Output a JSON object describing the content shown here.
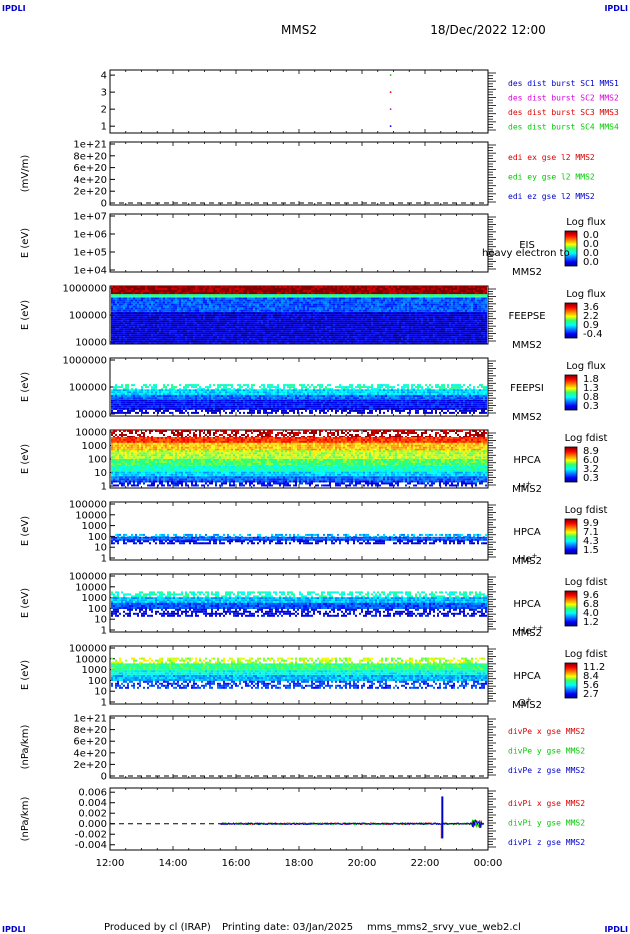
{
  "header": {
    "corner_label": "IPDLI",
    "spacecraft": "MMS2",
    "datetime": "18/Dec/2022 12:00"
  },
  "footer": {
    "credit": "Produced by cl (IRAP)",
    "print_date": "Printing date: 03/Jan/2025",
    "filename": "mms_mms2_srvy_vue_web2.cl"
  },
  "colors": {
    "mms1": "#0000cc",
    "mms2": "#dd00dd",
    "mms3": "#dd0000",
    "mms4": "#00cc00",
    "x_component": "#dd0000",
    "y_component": "#00cc00",
    "z_component": "#0000cc"
  },
  "chart_data": {
    "type": "multi-panel time series",
    "x_axis": {
      "ticks": [
        "12:00",
        "14:00",
        "16:00",
        "18:00",
        "20:00",
        "22:00",
        "00:00"
      ],
      "range_hours": [
        12,
        24
      ]
    },
    "panels": [
      {
        "id": "burst",
        "type": "scatter",
        "ytick_labels": [
          "1",
          "2",
          "3",
          "4"
        ],
        "ylim": [
          0.6,
          4.3
        ],
        "legend": [
          {
            "text": "des dist burst SC1 MMS1",
            "color": "#0000cc"
          },
          {
            "text": "des dist burst SC2 MMS2",
            "color": "#dd00dd"
          },
          {
            "text": "des dist burst SC3 MMS3",
            "color": "#dd0000"
          },
          {
            "text": "des dist burst SC4 MMS4",
            "color": "#00cc00"
          }
        ],
        "points": [
          {
            "x": 20.9,
            "y": 1,
            "color": "#0000cc"
          },
          {
            "x": 20.9,
            "y": 2,
            "color": "#dd00dd"
          },
          {
            "x": 20.9,
            "y": 3,
            "color": "#dd0000"
          },
          {
            "x": 20.9,
            "y": 4,
            "color": "#00cc00"
          }
        ]
      },
      {
        "id": "edi",
        "type": "line",
        "ylabel": "(mV/m)",
        "ytick_labels": [
          "0",
          "2e+20",
          "4e+20",
          "6e+20",
          "8e+20",
          "1e+21"
        ],
        "zero_line": true,
        "legend": [
          {
            "text": "edi ex gse l2 MMS2",
            "color": "#dd0000"
          },
          {
            "text": "edi ey gse l2 MMS2",
            "color": "#00cc00"
          },
          {
            "text": "edi ez gse l2 MMS2",
            "color": "#0000cc"
          }
        ]
      },
      {
        "id": "eis",
        "type": "heatmap",
        "ylabel": "E (eV)",
        "ytick_labels": [
          "1e+04",
          "1e+05",
          "1e+06",
          "1e+07"
        ],
        "scale": "log",
        "instrument": "EIS",
        "overlay_text": "heavy electron to",
        "spacecraft": "MMS2",
        "colorbar": {
          "title": "Log flux",
          "ticks": [
            "0.0",
            "0.0",
            "0.0",
            "0.0"
          ]
        },
        "data_bands": []
      },
      {
        "id": "feepse",
        "type": "heatmap",
        "ylabel": "E (eV)",
        "ytick_labels": [
          "10000",
          "100000",
          "1000000"
        ],
        "instrument": "FEEPSE",
        "spacecraft": "MMS2",
        "colorbar": {
          "title": "Log flux",
          "ticks": [
            "3.6",
            "2.2",
            "0.9",
            "-0.4"
          ]
        },
        "data_bands": [
          {
            "from": 0.0,
            "to": 0.14,
            "level": 0.98
          },
          {
            "from": 0.14,
            "to": 0.2,
            "level": 0.45
          },
          {
            "from": 0.2,
            "to": 0.45,
            "level": 0.2
          },
          {
            "from": 0.45,
            "to": 1.0,
            "level": 0.08
          }
        ]
      },
      {
        "id": "feepsi",
        "type": "heatmap",
        "ylabel": "E (eV)",
        "ytick_labels": [
          "10000",
          "100000",
          "1000000"
        ],
        "instrument": "FEEPSI",
        "spacecraft": "MMS2",
        "colorbar": {
          "title": "Log flux",
          "ticks": [
            "1.8",
            "1.3",
            "0.8",
            "0.3"
          ]
        },
        "data_bands": [
          {
            "from": 0.45,
            "to": 0.54,
            "level": 0.42
          },
          {
            "from": 0.54,
            "to": 0.64,
            "level": 0.33
          },
          {
            "from": 0.64,
            "to": 0.72,
            "level": 0.22
          },
          {
            "from": 0.72,
            "to": 0.86,
            "level": 0.12
          },
          {
            "from": 0.86,
            "to": 0.93,
            "level": 0.07
          }
        ]
      },
      {
        "id": "hpca_h",
        "type": "heatmap",
        "ylabel": "E (eV)",
        "ytick_labels": [
          "1",
          "10",
          "100",
          "1000",
          "10000"
        ],
        "instrument": "HPCA",
        "spacecraft": "MMS2",
        "species": "H+",
        "colorbar": {
          "title": "Log fdist",
          "ticks": [
            "8.9",
            "6.0",
            "3.2",
            "0.3"
          ]
        },
        "data_bands": [
          {
            "from": 0.0,
            "to": 0.12,
            "level": 0.95
          },
          {
            "from": 0.12,
            "to": 0.22,
            "level": 0.82
          },
          {
            "from": 0.22,
            "to": 0.35,
            "level": 0.68
          },
          {
            "from": 0.35,
            "to": 0.5,
            "level": 0.58
          },
          {
            "from": 0.5,
            "to": 0.62,
            "level": 0.5
          },
          {
            "from": 0.62,
            "to": 0.72,
            "level": 0.42
          },
          {
            "from": 0.72,
            "to": 0.8,
            "level": 0.32
          },
          {
            "from": 0.8,
            "to": 0.87,
            "level": 0.22
          },
          {
            "from": 0.87,
            "to": 0.94,
            "level": 0.12
          }
        ]
      },
      {
        "id": "hpca_he",
        "type": "heatmap",
        "ylabel": "E (eV)",
        "ytick_labels": [
          "1",
          "10",
          "100",
          "1000",
          "10000",
          "100000"
        ],
        "instrument": "HPCA",
        "spacecraft": "MMS2",
        "species": "He+",
        "colorbar": {
          "title": "Log fdist",
          "ticks": [
            "9.9",
            "7.1",
            "4.3",
            "1.5"
          ]
        },
        "data_bands": [
          {
            "from": 0.55,
            "to": 0.6,
            "level": 0.3
          },
          {
            "from": 0.6,
            "to": 0.66,
            "level": 0.2
          },
          {
            "from": 0.66,
            "to": 0.72,
            "level": 0.1
          }
        ]
      },
      {
        "id": "hpca_he2",
        "type": "heatmap",
        "ylabel": "E (eV)",
        "ytick_labels": [
          "1",
          "10",
          "100",
          "1000",
          "10000",
          "100000"
        ],
        "instrument": "HPCA",
        "spacecraft": "MMS2",
        "species": "He++",
        "colorbar": {
          "title": "Log fdist",
          "ticks": [
            "9.6",
            "6.8",
            "4.0",
            "1.2"
          ]
        },
        "data_bands": [
          {
            "from": 0.3,
            "to": 0.4,
            "level": 0.42
          },
          {
            "from": 0.4,
            "to": 0.5,
            "level": 0.3
          },
          {
            "from": 0.5,
            "to": 0.6,
            "level": 0.2
          },
          {
            "from": 0.6,
            "to": 0.72,
            "level": 0.1
          }
        ]
      },
      {
        "id": "hpca_o",
        "type": "heatmap",
        "ylabel": "E (eV)",
        "ytick_labels": [
          "1",
          "10",
          "100",
          "1000",
          "10000",
          "100000"
        ],
        "instrument": "HPCA",
        "spacecraft": "MMS2",
        "species": "O+",
        "colorbar": {
          "title": "Log fdist",
          "ticks": [
            "11.2",
            "8.4",
            "5.6",
            "2.7"
          ]
        },
        "data_bands": [
          {
            "from": 0.2,
            "to": 0.3,
            "level": 0.58
          },
          {
            "from": 0.3,
            "to": 0.42,
            "level": 0.48
          },
          {
            "from": 0.42,
            "to": 0.5,
            "level": 0.38
          },
          {
            "from": 0.5,
            "to": 0.6,
            "level": 0.3
          },
          {
            "from": 0.6,
            "to": 0.72,
            "level": 0.18
          }
        ]
      },
      {
        "id": "divpe",
        "type": "line",
        "ylabel": "(nPa/km)",
        "ytick_labels": [
          "0",
          "2e+20",
          "4e+20",
          "6e+20",
          "8e+20",
          "1e+21"
        ],
        "zero_line": true,
        "legend": [
          {
            "text": "divPe x gse MMS2",
            "color": "#dd0000"
          },
          {
            "text": "divPe y gse MMS2",
            "color": "#00cc00"
          },
          {
            "text": "divPe z gse MMS2",
            "color": "#0000cc"
          }
        ]
      },
      {
        "id": "divpi",
        "type": "line",
        "ylabel": "(nPa/km)",
        "ytick_labels": [
          "-0.004",
          "-0.002",
          "0.000",
          "0.002",
          "0.004",
          "0.006"
        ],
        "yticks": [
          -0.004,
          -0.002,
          0.0,
          0.002,
          0.004,
          0.006
        ],
        "ylim": [
          -0.005,
          0.0068
        ],
        "zero_line": true,
        "data_start_hour": 15.5,
        "spike": {
          "x": 22.55,
          "min": -0.0028,
          "max": 0.0052
        },
        "tail_noise": {
          "x_from": 23.5,
          "x_to": 23.8,
          "amplitude": 0.0008
        },
        "legend": [
          {
            "text": "divPi x gse MMS2",
            "color": "#dd0000"
          },
          {
            "text": "divPi y gse MMS2",
            "color": "#00cc00"
          },
          {
            "text": "divPi z gse MMS2",
            "color": "#0000cc"
          }
        ]
      }
    ]
  }
}
